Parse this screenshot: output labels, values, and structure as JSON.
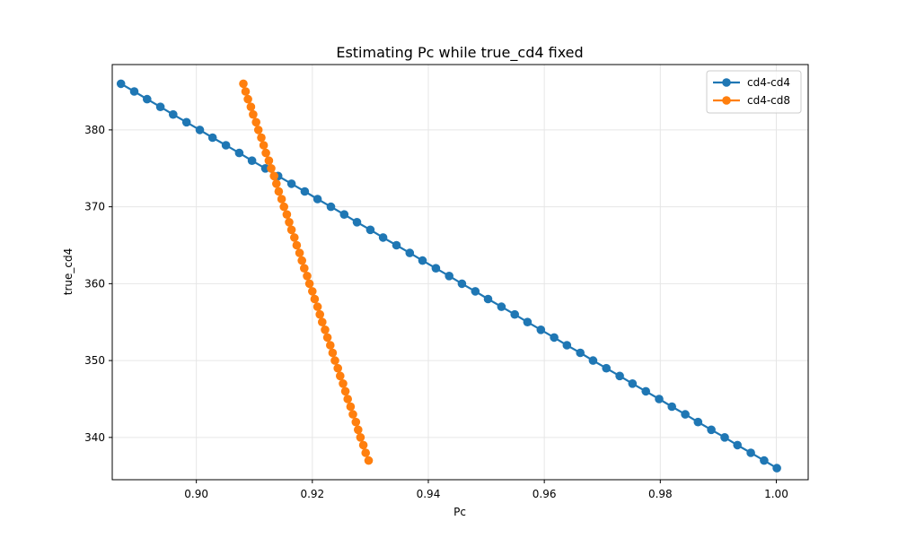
{
  "chart_data": {
    "type": "line",
    "title": "Estimating Pc while true_cd4 fixed",
    "xlabel": "Pc",
    "ylabel": "true_cd4",
    "xlim": [
      0.8855,
      1.0055
    ],
    "ylim": [
      334.5,
      388.5
    ],
    "x_ticks": [
      0.9,
      0.92,
      0.94,
      0.96,
      0.98,
      1.0
    ],
    "x_tick_labels": [
      "0.90",
      "0.92",
      "0.94",
      "0.96",
      "0.98",
      "1.00"
    ],
    "y_ticks": [
      340,
      350,
      360,
      370,
      380
    ],
    "y_tick_labels": [
      "340",
      "350",
      "360",
      "370",
      "380"
    ],
    "grid": true,
    "legend": "top-right",
    "series": [
      {
        "name": "cd4-cd4",
        "color": "#1f77b4",
        "marker": "circle",
        "points": [
          {
            "x": 0.887,
            "y": 386
          },
          {
            "x": 0.8893,
            "y": 385
          },
          {
            "x": 0.8915,
            "y": 384
          },
          {
            "x": 0.8938,
            "y": 383
          },
          {
            "x": 0.896,
            "y": 382
          },
          {
            "x": 0.8983,
            "y": 381
          },
          {
            "x": 0.9006,
            "y": 380
          },
          {
            "x": 0.9028,
            "y": 379
          },
          {
            "x": 0.9051,
            "y": 378
          },
          {
            "x": 0.9074,
            "y": 377
          },
          {
            "x": 0.9096,
            "y": 376
          },
          {
            "x": 0.9119,
            "y": 375
          },
          {
            "x": 0.9141,
            "y": 374
          },
          {
            "x": 0.9164,
            "y": 373
          },
          {
            "x": 0.9187,
            "y": 372
          },
          {
            "x": 0.9209,
            "y": 371
          },
          {
            "x": 0.9232,
            "y": 370
          },
          {
            "x": 0.9255,
            "y": 369
          },
          {
            "x": 0.9277,
            "y": 368
          },
          {
            "x": 0.93,
            "y": 367
          },
          {
            "x": 0.9322,
            "y": 366
          },
          {
            "x": 0.9345,
            "y": 365
          },
          {
            "x": 0.9368,
            "y": 364
          },
          {
            "x": 0.939,
            "y": 363
          },
          {
            "x": 0.9413,
            "y": 362
          },
          {
            "x": 0.9436,
            "y": 361
          },
          {
            "x": 0.9458,
            "y": 360
          },
          {
            "x": 0.9481,
            "y": 359
          },
          {
            "x": 0.9503,
            "y": 358
          },
          {
            "x": 0.9526,
            "y": 357
          },
          {
            "x": 0.9549,
            "y": 356
          },
          {
            "x": 0.9571,
            "y": 355
          },
          {
            "x": 0.9594,
            "y": 354
          },
          {
            "x": 0.9617,
            "y": 353
          },
          {
            "x": 0.9639,
            "y": 352
          },
          {
            "x": 0.9662,
            "y": 351
          },
          {
            "x": 0.9684,
            "y": 350
          },
          {
            "x": 0.9707,
            "y": 349
          },
          {
            "x": 0.973,
            "y": 348
          },
          {
            "x": 0.9752,
            "y": 347
          },
          {
            "x": 0.9775,
            "y": 346
          },
          {
            "x": 0.9798,
            "y": 345
          },
          {
            "x": 0.982,
            "y": 344
          },
          {
            "x": 0.9843,
            "y": 343
          },
          {
            "x": 0.9865,
            "y": 342
          },
          {
            "x": 0.9888,
            "y": 341
          },
          {
            "x": 0.9911,
            "y": 340
          },
          {
            "x": 0.9933,
            "y": 339
          },
          {
            "x": 0.9956,
            "y": 338
          },
          {
            "x": 0.9979,
            "y": 337
          },
          {
            "x": 1.0001,
            "y": 336
          }
        ]
      },
      {
        "name": "cd4-cd8",
        "color": "#ff7f0e",
        "marker": "circle",
        "points": [
          {
            "x": 0.9081,
            "y": 386
          },
          {
            "x": 0.9085,
            "y": 385
          },
          {
            "x": 0.9089,
            "y": 384
          },
          {
            "x": 0.9094,
            "y": 383
          },
          {
            "x": 0.9098,
            "y": 382
          },
          {
            "x": 0.9103,
            "y": 381
          },
          {
            "x": 0.9107,
            "y": 380
          },
          {
            "x": 0.9112,
            "y": 379
          },
          {
            "x": 0.9116,
            "y": 378
          },
          {
            "x": 0.912,
            "y": 377
          },
          {
            "x": 0.9125,
            "y": 376
          },
          {
            "x": 0.9129,
            "y": 375
          },
          {
            "x": 0.9134,
            "y": 374
          },
          {
            "x": 0.9138,
            "y": 373
          },
          {
            "x": 0.9142,
            "y": 372
          },
          {
            "x": 0.9147,
            "y": 371
          },
          {
            "x": 0.9151,
            "y": 370
          },
          {
            "x": 0.9156,
            "y": 369
          },
          {
            "x": 0.916,
            "y": 368
          },
          {
            "x": 0.9164,
            "y": 367
          },
          {
            "x": 0.9169,
            "y": 366
          },
          {
            "x": 0.9173,
            "y": 365
          },
          {
            "x": 0.9178,
            "y": 364
          },
          {
            "x": 0.9182,
            "y": 363
          },
          {
            "x": 0.9186,
            "y": 362
          },
          {
            "x": 0.9191,
            "y": 361
          },
          {
            "x": 0.9195,
            "y": 360
          },
          {
            "x": 0.92,
            "y": 359
          },
          {
            "x": 0.9204,
            "y": 358
          },
          {
            "x": 0.9209,
            "y": 357
          },
          {
            "x": 0.9213,
            "y": 356
          },
          {
            "x": 0.9217,
            "y": 355
          },
          {
            "x": 0.9222,
            "y": 354
          },
          {
            "x": 0.9226,
            "y": 353
          },
          {
            "x": 0.9231,
            "y": 352
          },
          {
            "x": 0.9235,
            "y": 351
          },
          {
            "x": 0.9239,
            "y": 350
          },
          {
            "x": 0.9244,
            "y": 349
          },
          {
            "x": 0.9248,
            "y": 348
          },
          {
            "x": 0.9253,
            "y": 347
          },
          {
            "x": 0.9257,
            "y": 346
          },
          {
            "x": 0.9261,
            "y": 345
          },
          {
            "x": 0.9266,
            "y": 344
          },
          {
            "x": 0.927,
            "y": 343
          },
          {
            "x": 0.9275,
            "y": 342
          },
          {
            "x": 0.9279,
            "y": 341
          },
          {
            "x": 0.9283,
            "y": 340
          },
          {
            "x": 0.9288,
            "y": 339
          },
          {
            "x": 0.9292,
            "y": 338
          },
          {
            "x": 0.9297,
            "y": 337
          }
        ]
      }
    ]
  }
}
